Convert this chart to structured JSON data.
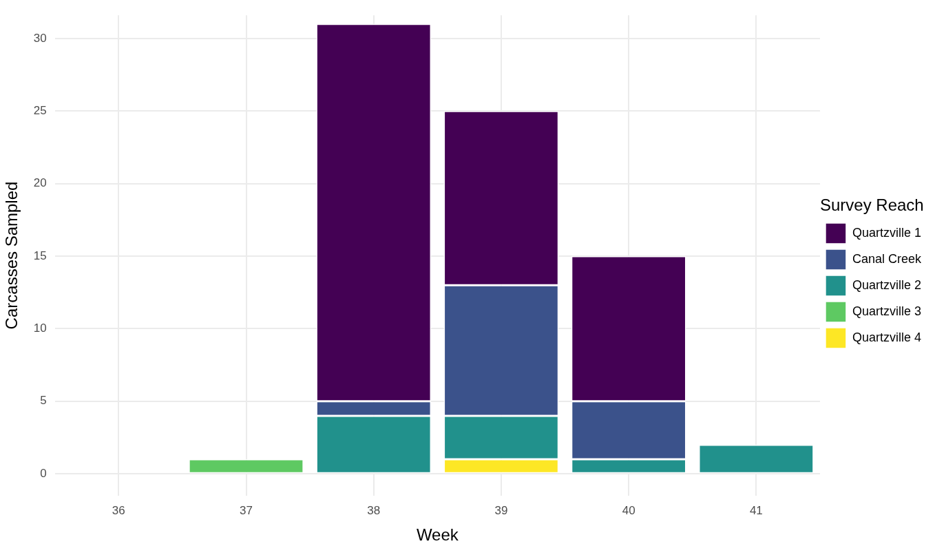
{
  "chart_data": {
    "type": "bar",
    "stacked": true,
    "xlabel": "Week",
    "ylabel": "Carcasses Sampled",
    "legend_title": "Survey Reach",
    "legend": "right",
    "grid": true,
    "categories": [
      "36",
      "37",
      "38",
      "39",
      "40",
      "41"
    ],
    "ylim": [
      -1.5,
      31.6
    ],
    "yticks": [
      0,
      5,
      10,
      15,
      20,
      25,
      30
    ],
    "series": [
      {
        "name": "Quartzville 4",
        "color": "#fde725",
        "values": [
          null,
          null,
          null,
          1,
          null,
          null
        ]
      },
      {
        "name": "Quartzville 3",
        "color": "#5ec962",
        "values": [
          null,
          1,
          null,
          null,
          null,
          null
        ]
      },
      {
        "name": "Quartzville 2",
        "color": "#21918c",
        "values": [
          null,
          null,
          4,
          3,
          1,
          2
        ]
      },
      {
        "name": "Canal Creek",
        "color": "#3b528b",
        "values": [
          null,
          null,
          1,
          9,
          4,
          null
        ]
      },
      {
        "name": "Quartzville 1",
        "color": "#440154",
        "values": [
          null,
          null,
          26,
          12,
          10,
          null
        ]
      }
    ]
  }
}
